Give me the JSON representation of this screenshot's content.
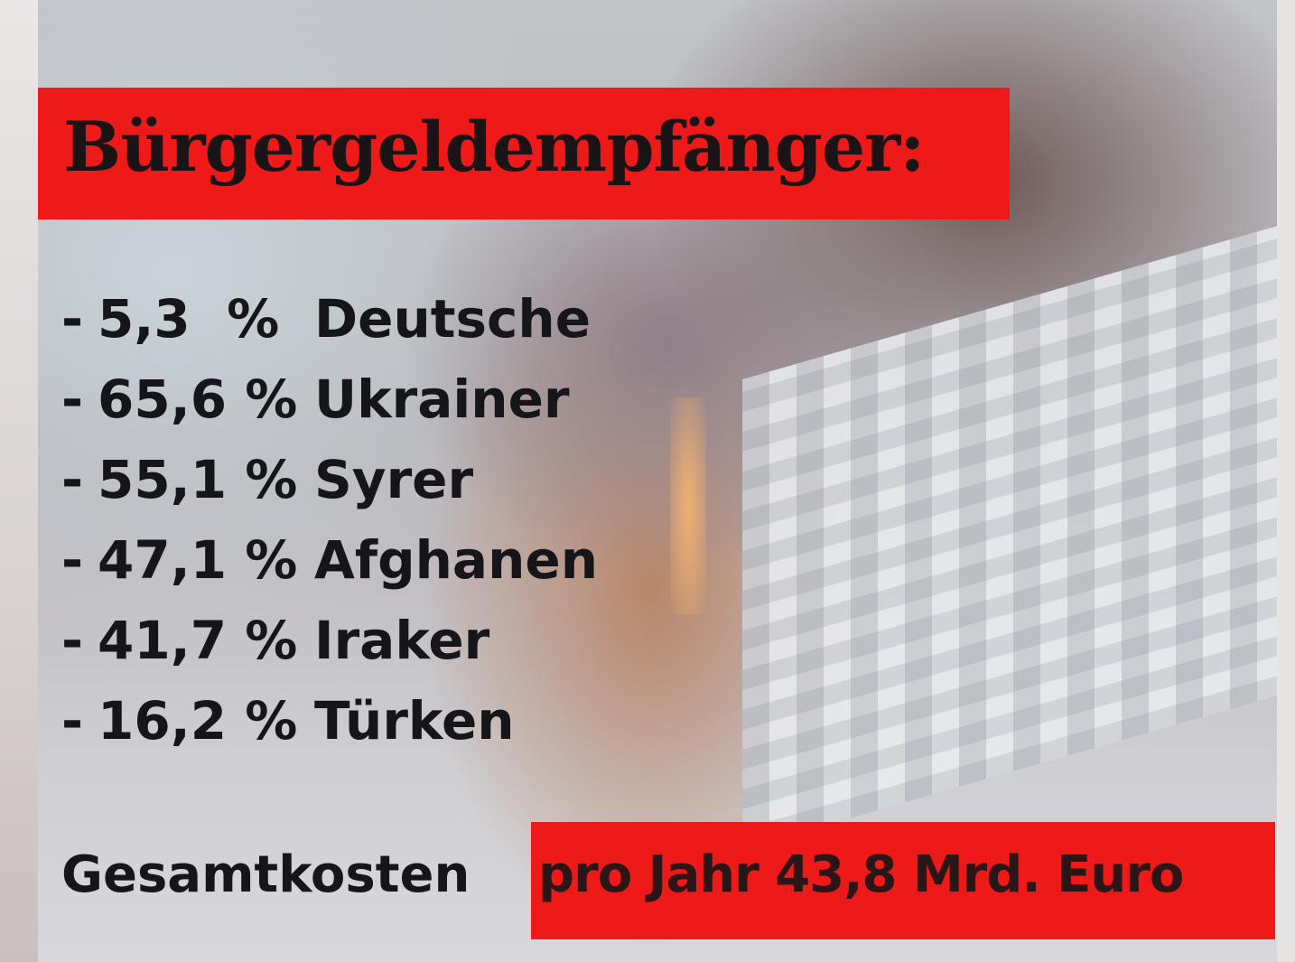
{
  "title": "Bürgergeldempfänger:",
  "items": [
    {
      "dash": "-",
      "percent": "5,3  %",
      "group": "Deutsche"
    },
    {
      "dash": "-",
      "percent": "65,6 %",
      "group": "Ukrainer"
    },
    {
      "dash": "-",
      "percent": "55,1 %",
      "group": "Syrer"
    },
    {
      "dash": "-",
      "percent": "47,1 %",
      "group": "Afghanen"
    },
    {
      "dash": "-",
      "percent": "41,7 %",
      "group": "Iraker"
    },
    {
      "dash": "-",
      "percent": "16,2 %",
      "group": "Türken"
    }
  ],
  "total_label": "Gesamtkosten",
  "total_value": "pro Jahr 43,8 Mrd. Euro",
  "colors": {
    "highlight": "#ee1a1a",
    "text": "#15151a"
  }
}
